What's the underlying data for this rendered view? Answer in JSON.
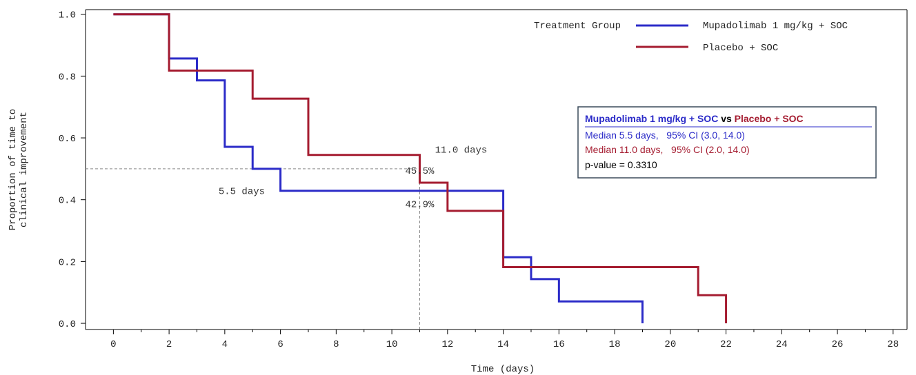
{
  "chart_data": {
    "type": "line",
    "step": true,
    "xlabel": "Time (days)",
    "ylabel_lines": [
      "Proportion of time to",
      "clinical improvement"
    ],
    "xlim": [
      -1,
      28.5
    ],
    "ylim": [
      -0.02,
      1.015
    ],
    "x_ticks": [
      0,
      2,
      4,
      6,
      8,
      10,
      12,
      14,
      16,
      18,
      20,
      22,
      24,
      26,
      28
    ],
    "x_tick_labels": [
      "0",
      "2",
      "4",
      "6",
      "8",
      "10",
      "12",
      "14",
      "16",
      "18",
      "20",
      "22",
      "24",
      "26",
      "28"
    ],
    "x_minor_ticks": [
      1,
      3,
      5,
      7,
      9,
      11,
      13,
      15,
      17,
      19,
      21,
      23,
      25,
      27
    ],
    "y_ticks": [
      0.0,
      0.2,
      0.4,
      0.6,
      0.8,
      1.0
    ],
    "y_tick_labels": [
      "0.0",
      "0.2",
      "0.4",
      "0.6",
      "0.8",
      "1.0"
    ],
    "grid": false,
    "legend": {
      "placement": "top-right",
      "title": "Treatment Group",
      "entries": [
        "Mupadolimab 1 mg/kg + SOC",
        "Placebo + SOC"
      ]
    },
    "series": [
      {
        "name": "Mupadolimab 1 mg/kg + SOC",
        "color": "#2b2bc8",
        "x": [
          0,
          2,
          3,
          4,
          5,
          6,
          14,
          15,
          16,
          19
        ],
        "y": [
          1.0,
          0.857,
          0.786,
          0.571,
          0.5,
          0.429,
          0.214,
          0.143,
          0.071,
          0.0
        ]
      },
      {
        "name": "Placebo + SOC",
        "color": "#a51c30",
        "x": [
          0,
          2,
          5,
          7,
          11,
          12,
          14,
          21,
          22
        ],
        "y": [
          1.0,
          0.818,
          0.727,
          0.545,
          0.455,
          0.364,
          0.182,
          0.091,
          0.0
        ]
      }
    ],
    "reference_lines": {
      "horizontal": {
        "y": 0.5,
        "x_from": -1,
        "x_to": 11
      },
      "vertical": {
        "x": 11,
        "y_from": -0.02,
        "y_to": 0.545
      }
    },
    "annotations": [
      {
        "text": "11.0 days",
        "x": 11.0,
        "y": 0.545
      },
      {
        "text": "45.5%",
        "x": 11.0,
        "y": 0.5
      },
      {
        "text": "5.5 days",
        "x": 5.5,
        "y": 0.43
      },
      {
        "text": "42.9%",
        "x": 11.0,
        "y": 0.385
      }
    ],
    "stats_box": {
      "title_a": "Mupadolimab 1 mg/kg + SOC",
      "title_vs": " vs ",
      "title_b": "Placebo + SOC",
      "lines": [
        {
          "text": "Median 5.5 days,   95% CI (3.0, 14.0)",
          "color": "#2b2bc8"
        },
        {
          "text": "Median 11.0 days,   95% CI (2.0, 14.0)",
          "color": "#a51c30"
        },
        {
          "text": "p-value = 0.3310",
          "color": "#000000"
        }
      ],
      "border_color": "#3a4a5a"
    }
  }
}
